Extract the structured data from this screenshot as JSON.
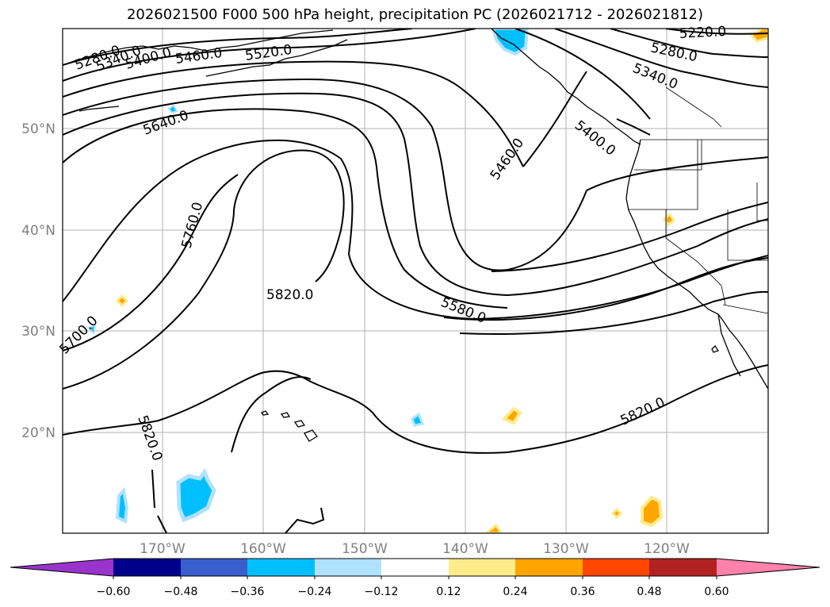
{
  "title": "2026021500 F000 500 hPa height, precipitation PC (2026021712 - 2026021812)",
  "lat_labels": [
    "50°N",
    "40°N",
    "30°N",
    "20°N"
  ],
  "lon_labels": [
    "170°W",
    "160°W",
    "150°W",
    "140°W",
    "130°W",
    "120°W"
  ],
  "contour_labels": [
    "5280.0",
    "5340.0",
    "5400.0",
    "5460.0",
    "5520.0",
    "5640.0",
    "5760.0",
    "5820.0",
    "5700.0",
    "5820.0",
    "5220.0",
    "5280.0",
    "5340.0",
    "5400.0",
    "5460.0",
    "5580.0",
    "5820.0"
  ],
  "colorbar": {
    "ticks": [
      "−0.60",
      "−0.48",
      "−0.36",
      "−0.24",
      "−0.12",
      "0.12",
      "0.24",
      "0.36",
      "0.48",
      "0.60"
    ],
    "colors": [
      "#9933cc",
      "#00008b",
      "#3a5fcd",
      "#00bfff",
      "#b0e2ff",
      "#ffffff",
      "#ffeb8a",
      "#ffa500",
      "#ff4500",
      "#b22222",
      "#ff82ab",
      "#ff82ab"
    ]
  }
}
